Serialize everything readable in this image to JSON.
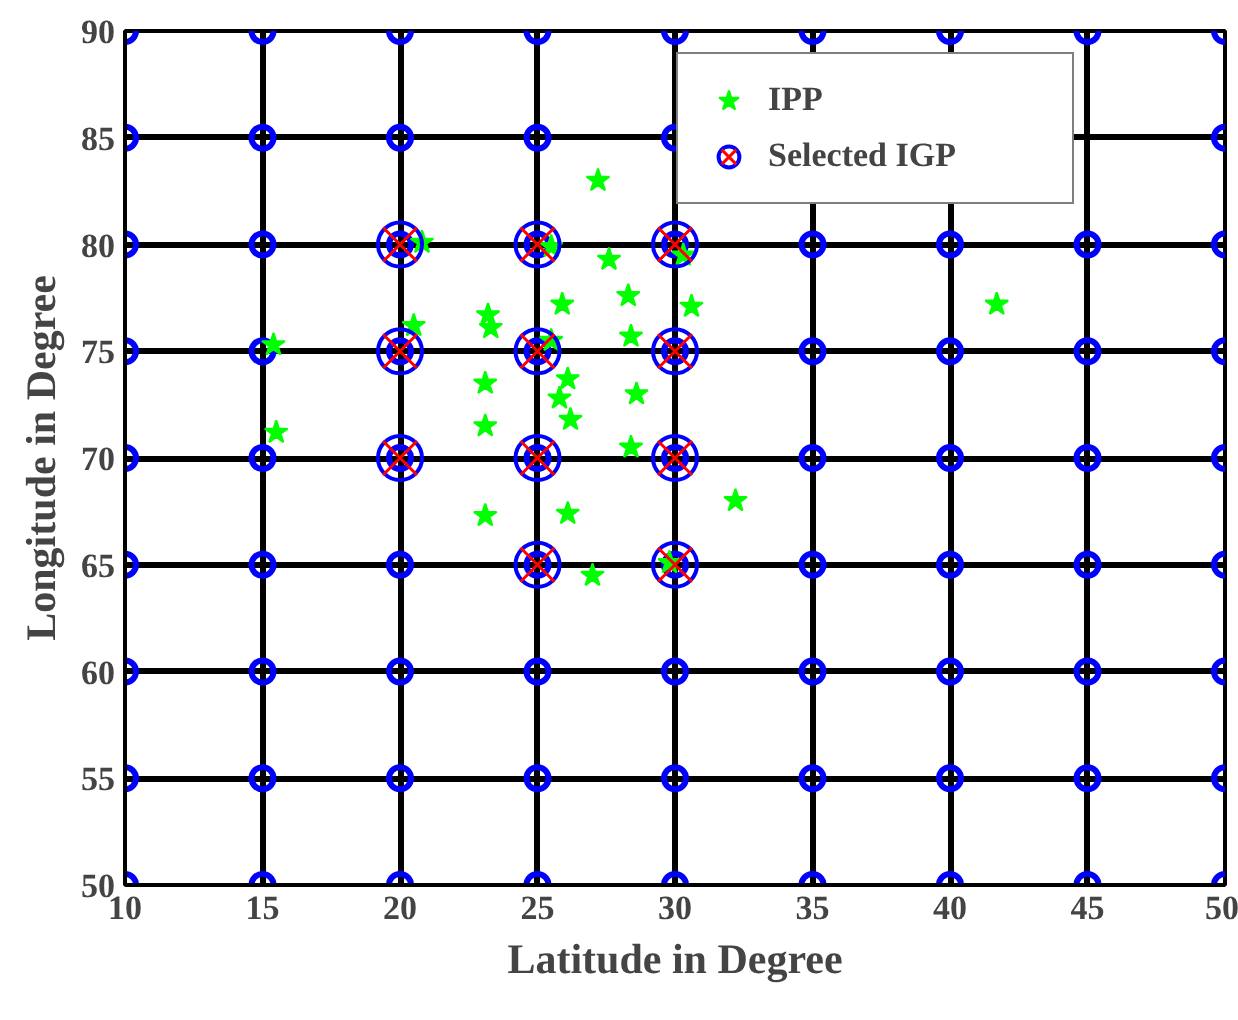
{
  "chart_data": {
    "type": "scatter",
    "xlabel": "Latitude in Degree",
    "ylabel": "Longitude in Degree",
    "xlim": [
      10,
      50
    ],
    "ylim": [
      50,
      90
    ],
    "xticks": [
      10,
      15,
      20,
      25,
      30,
      35,
      40,
      45,
      50
    ],
    "yticks": [
      50,
      55,
      60,
      65,
      70,
      75,
      80,
      85,
      90
    ],
    "grid": true,
    "legend": "top right",
    "series": [
      {
        "color": "#0000ff",
        "marker": "circle",
        "x": [
          10,
          15,
          20,
          25,
          30,
          35,
          40,
          45,
          50,
          10,
          15,
          20,
          25,
          30,
          35,
          40,
          45,
          50,
          10,
          15,
          20,
          25,
          30,
          35,
          40,
          45,
          50,
          10,
          15,
          20,
          25,
          30,
          35,
          40,
          45,
          50,
          10,
          15,
          20,
          25,
          30,
          35,
          40,
          45,
          50,
          10,
          15,
          20,
          25,
          30,
          35,
          40,
          45,
          50,
          10,
          15,
          20,
          25,
          30,
          35,
          40,
          45,
          50,
          10,
          15,
          20,
          25,
          30,
          50,
          10,
          15,
          20,
          25,
          30,
          35,
          40,
          45,
          50
        ],
        "values": [
          50,
          50,
          50,
          50,
          50,
          50,
          50,
          50,
          50,
          55,
          55,
          55,
          55,
          55,
          55,
          55,
          55,
          55,
          60,
          60,
          60,
          60,
          60,
          60,
          60,
          60,
          60,
          65,
          65,
          65,
          65,
          65,
          65,
          65,
          65,
          65,
          70,
          70,
          70,
          70,
          70,
          70,
          70,
          70,
          70,
          75,
          75,
          75,
          75,
          75,
          75,
          75,
          75,
          75,
          80,
          80,
          80,
          80,
          80,
          80,
          80,
          80,
          80,
          85,
          85,
          85,
          85,
          85,
          85,
          90,
          90,
          90,
          90,
          90,
          90,
          90,
          90,
          90
        ]
      },
      {
        "name": "IPP",
        "color": "#00ff00",
        "marker": "star",
        "x": [
          20.8,
          20.5,
          15.4,
          15.5,
          23.2,
          23.3,
          23.1,
          23.1,
          23.1,
          27.2,
          27.6,
          28.3,
          25.9,
          30.6,
          28.4,
          26.1,
          25.8,
          26.2,
          28.6,
          28.4,
          26.1,
          27.0,
          32.2,
          25.5,
          30.3,
          25.5,
          29.8,
          41.7
        ],
        "values": [
          80.1,
          76.2,
          75.3,
          71.2,
          76.7,
          76.1,
          73.5,
          71.5,
          67.3,
          83.0,
          79.3,
          77.6,
          77.2,
          77.1,
          75.7,
          73.7,
          72.8,
          71.8,
          73.0,
          70.5,
          67.4,
          64.5,
          68.0,
          79.9,
          79.5,
          75.5,
          65.1,
          77.2
        ]
      },
      {
        "name": "Selected IGP",
        "color": "#ff0000",
        "marker": "cross",
        "x": [
          20,
          25,
          30,
          20,
          25,
          30,
          20,
          25,
          30,
          25,
          30
        ],
        "values": [
          80,
          80,
          80,
          75,
          75,
          75,
          70,
          70,
          70,
          65,
          65
        ]
      }
    ]
  }
}
